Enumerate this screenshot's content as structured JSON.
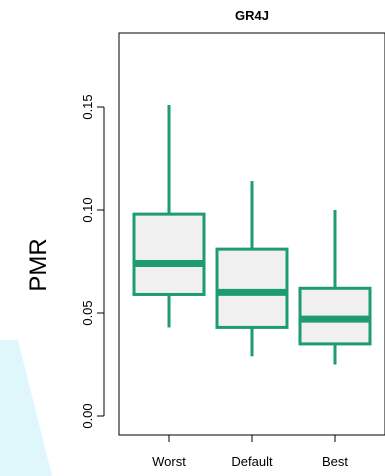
{
  "chart_data": {
    "type": "box",
    "title": "GR4J",
    "ylabel": "PMR",
    "xlabel": "",
    "ylim": [
      0,
      0.19
    ],
    "yticks": [
      0.0,
      0.05,
      0.1,
      0.15
    ],
    "ytick_labels": [
      "0.00",
      "0.05",
      "0.10",
      "0.15"
    ],
    "categories": [
      "Worst",
      "Default",
      "Best"
    ],
    "boxes": [
      {
        "category": "Worst",
        "whisker_low": 0.043,
        "q1": 0.059,
        "median": 0.074,
        "q3": 0.098,
        "whisker_high": 0.151
      },
      {
        "category": "Default",
        "whisker_low": 0.029,
        "q1": 0.043,
        "median": 0.06,
        "q3": 0.081,
        "whisker_high": 0.114
      },
      {
        "category": "Best",
        "whisker_low": 0.025,
        "q1": 0.035,
        "median": 0.047,
        "q3": 0.062,
        "whisker_high": 0.1
      }
    ],
    "box_color": "#1e9b73",
    "box_fill": "#f0f0f0",
    "grid": false
  }
}
